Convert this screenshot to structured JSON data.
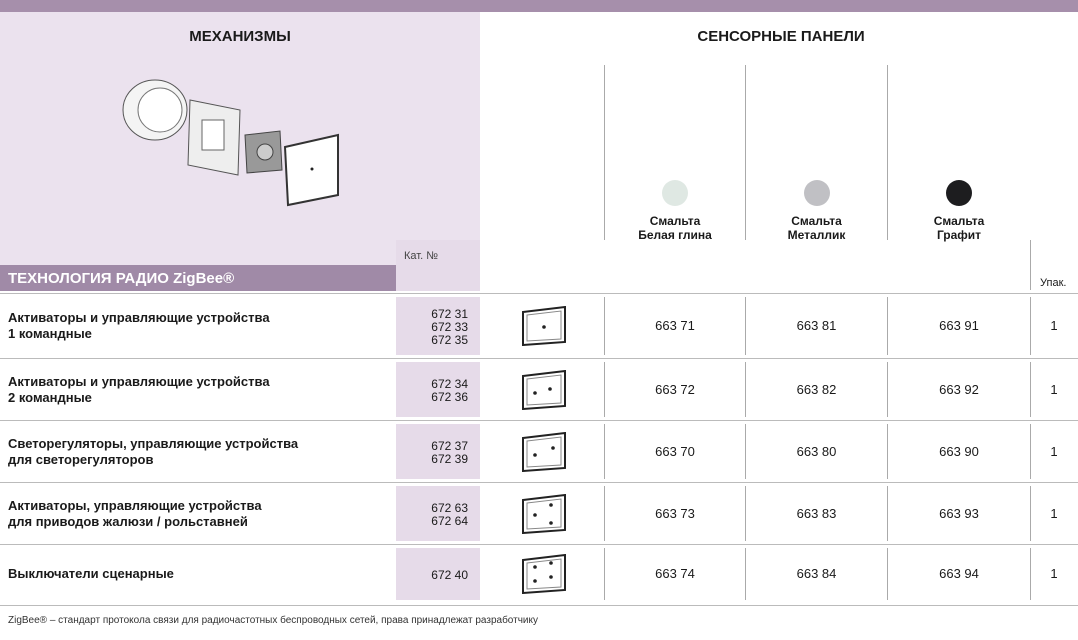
{
  "header": {
    "left_title": "МЕХАНИЗМЫ",
    "right_title": "СЕНСОРНЫЕ ПАНЕЛИ",
    "cat_label": "Кат. №",
    "section_title": "ТЕХНОЛОГИЯ РАДИО ZigBee®",
    "pack_label": "Упак."
  },
  "columns": [
    {
      "line1": "Смальта",
      "line2": "Белая глина"
    },
    {
      "line1": "Смальта",
      "line2": "Металлик"
    },
    {
      "line1": "Смальта",
      "line2": "Графит"
    }
  ],
  "rows": [
    {
      "label": [
        "Активаторы и управляющие устройства",
        "1 командные"
      ],
      "cat": [
        "672 31",
        "672 33",
        "672 35"
      ],
      "codes": [
        "663 71",
        "663 81",
        "663 91"
      ],
      "pack": "1"
    },
    {
      "label": [
        "Активаторы и управляющие устройства",
        "2 командные"
      ],
      "cat": [
        "672 34",
        "672 36"
      ],
      "codes": [
        "663 72",
        "663 82",
        "663 92"
      ],
      "pack": "1"
    },
    {
      "label": [
        "Светорегуляторы, управляющие устройства",
        "для светорегуляторов"
      ],
      "cat": [
        "672 37",
        "672 39"
      ],
      "codes": [
        "663 70",
        "663 80",
        "663 90"
      ],
      "pack": "1"
    },
    {
      "label": [
        "Активаторы, управляющие устройства",
        "для приводов жалюзи / рольставней"
      ],
      "cat": [
        "672 63",
        "672 64"
      ],
      "codes": [
        "663 73",
        "663 83",
        "663 93"
      ],
      "pack": "1"
    },
    {
      "label": [
        "Выключатели сценарные"
      ],
      "cat": [
        "672 40"
      ],
      "codes": [
        "663 74",
        "663 84",
        "663 94"
      ],
      "pack": "1"
    }
  ],
  "footer": "ZigBee® – стандарт протокола связи для радиочастотных беспроводных сетей, права принадлежат разработчику"
}
